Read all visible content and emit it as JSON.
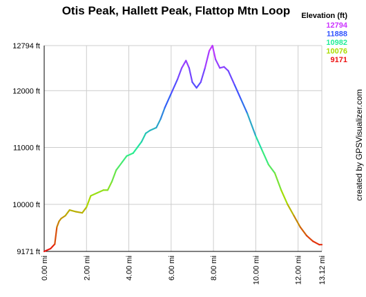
{
  "chart_data": {
    "type": "line",
    "title": "Otis Peak, Hallett Peak, Flattop Mtn Loop",
    "xlabel": "",
    "ylabel": "",
    "xlim": [
      0,
      13.12
    ],
    "ylim": [
      9171,
      12794
    ],
    "x_ticks": [
      "0.00 mi",
      "2.00 mi",
      "4.00 mi",
      "6.00 mi",
      "8.00 mi",
      "10.00 mi",
      "12.00 mi",
      "13.12 mi"
    ],
    "x_tick_values": [
      0,
      2,
      4,
      6,
      8,
      10,
      12,
      13.12
    ],
    "y_ticks": [
      "9171 ft",
      "10000 ft",
      "11000 ft",
      "12000 ft",
      "12794 ft"
    ],
    "y_tick_values": [
      9171,
      10000,
      11000,
      12000,
      12794
    ],
    "grid": true,
    "legend": {
      "title": "Elevation (ft)",
      "placement": "top-right",
      "entries": [
        {
          "label": "12794",
          "color": "#cc33ff"
        },
        {
          "label": "11888",
          "color": "#3355ff"
        },
        {
          "label": "10982",
          "color": "#22ee99"
        },
        {
          "label": "10076",
          "color": "#aadd00"
        },
        {
          "label": "9171",
          "color": "#ee1111"
        }
      ]
    },
    "series": [
      {
        "x": [
          0,
          0.3,
          0.5,
          0.6,
          0.7,
          0.8,
          1.0,
          1.2,
          1.5,
          1.8,
          2.0,
          2.2,
          2.5,
          2.8,
          3.0,
          3.2,
          3.4,
          3.5,
          3.7,
          3.9,
          4.2,
          4.4,
          4.6,
          4.8,
          5.0,
          5.3,
          5.5,
          5.7,
          6.0,
          6.3,
          6.5,
          6.7,
          6.85,
          7.0,
          7.2,
          7.4,
          7.6,
          7.8,
          7.95,
          8.1,
          8.3,
          8.5,
          8.7,
          9.0,
          9.3,
          9.6,
          10.0,
          10.3,
          10.6,
          10.9,
          11.2,
          11.5,
          11.8,
          12.1,
          12.4,
          12.7,
          13.0,
          13.12
        ],
        "y": [
          9171,
          9220,
          9300,
          9600,
          9700,
          9750,
          9800,
          9900,
          9870,
          9850,
          9950,
          10150,
          10200,
          10250,
          10250,
          10400,
          10600,
          10650,
          10750,
          10850,
          10900,
          11000,
          11100,
          11250,
          11300,
          11350,
          11500,
          11700,
          11950,
          12200,
          12400,
          12530,
          12400,
          12150,
          12050,
          12150,
          12400,
          12700,
          12794,
          12550,
          12400,
          12420,
          12350,
          12100,
          11850,
          11600,
          11200,
          10950,
          10700,
          10550,
          10250,
          10000,
          9800,
          9600,
          9450,
          9350,
          9290,
          9290
        ]
      }
    ]
  },
  "credit": "created by GPSVisualizer.com"
}
